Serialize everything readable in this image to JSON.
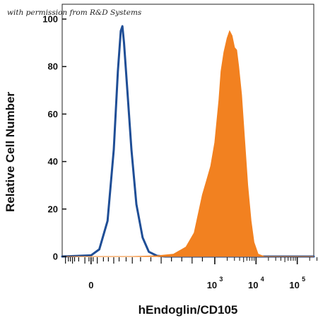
{
  "watermark": "with permission from R&D Systems",
  "chart_data": {
    "type": "area",
    "xlabel": "hEndoglin/CD105",
    "ylabel": "Relative Cell Number",
    "x_scale": "biexponential",
    "xlim_log": [
      -0.7,
      5.4
    ],
    "ylim": [
      0,
      100
    ],
    "y_ticks": [
      0,
      20,
      40,
      60,
      80,
      100
    ],
    "x_ticks": [
      {
        "label": "0",
        "pos": 0
      },
      {
        "base": "10",
        "exp": "3",
        "pos": 3
      },
      {
        "base": "10",
        "exp": "4",
        "pos": 4
      },
      {
        "base": "10",
        "exp": "5",
        "pos": 5
      }
    ],
    "grid": false,
    "series": [
      {
        "style": "outline",
        "color": "#1f4e96",
        "points": [
          [
            -0.7,
            0
          ],
          [
            0.0,
            0.5
          ],
          [
            0.2,
            3
          ],
          [
            0.4,
            15
          ],
          [
            0.55,
            45
          ],
          [
            0.65,
            78
          ],
          [
            0.72,
            95
          ],
          [
            0.76,
            97
          ],
          [
            0.8,
            90
          ],
          [
            0.88,
            70
          ],
          [
            0.98,
            45
          ],
          [
            1.1,
            22
          ],
          [
            1.25,
            8
          ],
          [
            1.4,
            2
          ],
          [
            1.6,
            0.3
          ],
          [
            1.8,
            0
          ],
          [
            5.4,
            0
          ]
        ]
      },
      {
        "style": "filled",
        "color": "#f28120",
        "points": [
          [
            -0.7,
            0
          ],
          [
            1.0,
            0
          ],
          [
            1.6,
            0.3
          ],
          [
            2.0,
            1
          ],
          [
            2.3,
            4
          ],
          [
            2.5,
            10
          ],
          [
            2.6,
            18
          ],
          [
            2.7,
            26
          ],
          [
            2.8,
            32
          ],
          [
            2.9,
            38
          ],
          [
            3.0,
            48
          ],
          [
            3.1,
            66
          ],
          [
            3.15,
            78
          ],
          [
            3.22,
            86
          ],
          [
            3.3,
            92
          ],
          [
            3.36,
            95
          ],
          [
            3.42,
            93
          ],
          [
            3.48,
            88
          ],
          [
            3.53,
            87
          ],
          [
            3.58,
            80
          ],
          [
            3.65,
            68
          ],
          [
            3.72,
            50
          ],
          [
            3.8,
            30
          ],
          [
            3.88,
            15
          ],
          [
            3.95,
            6
          ],
          [
            4.05,
            1
          ],
          [
            4.2,
            0
          ],
          [
            5.4,
            0
          ]
        ]
      }
    ]
  }
}
